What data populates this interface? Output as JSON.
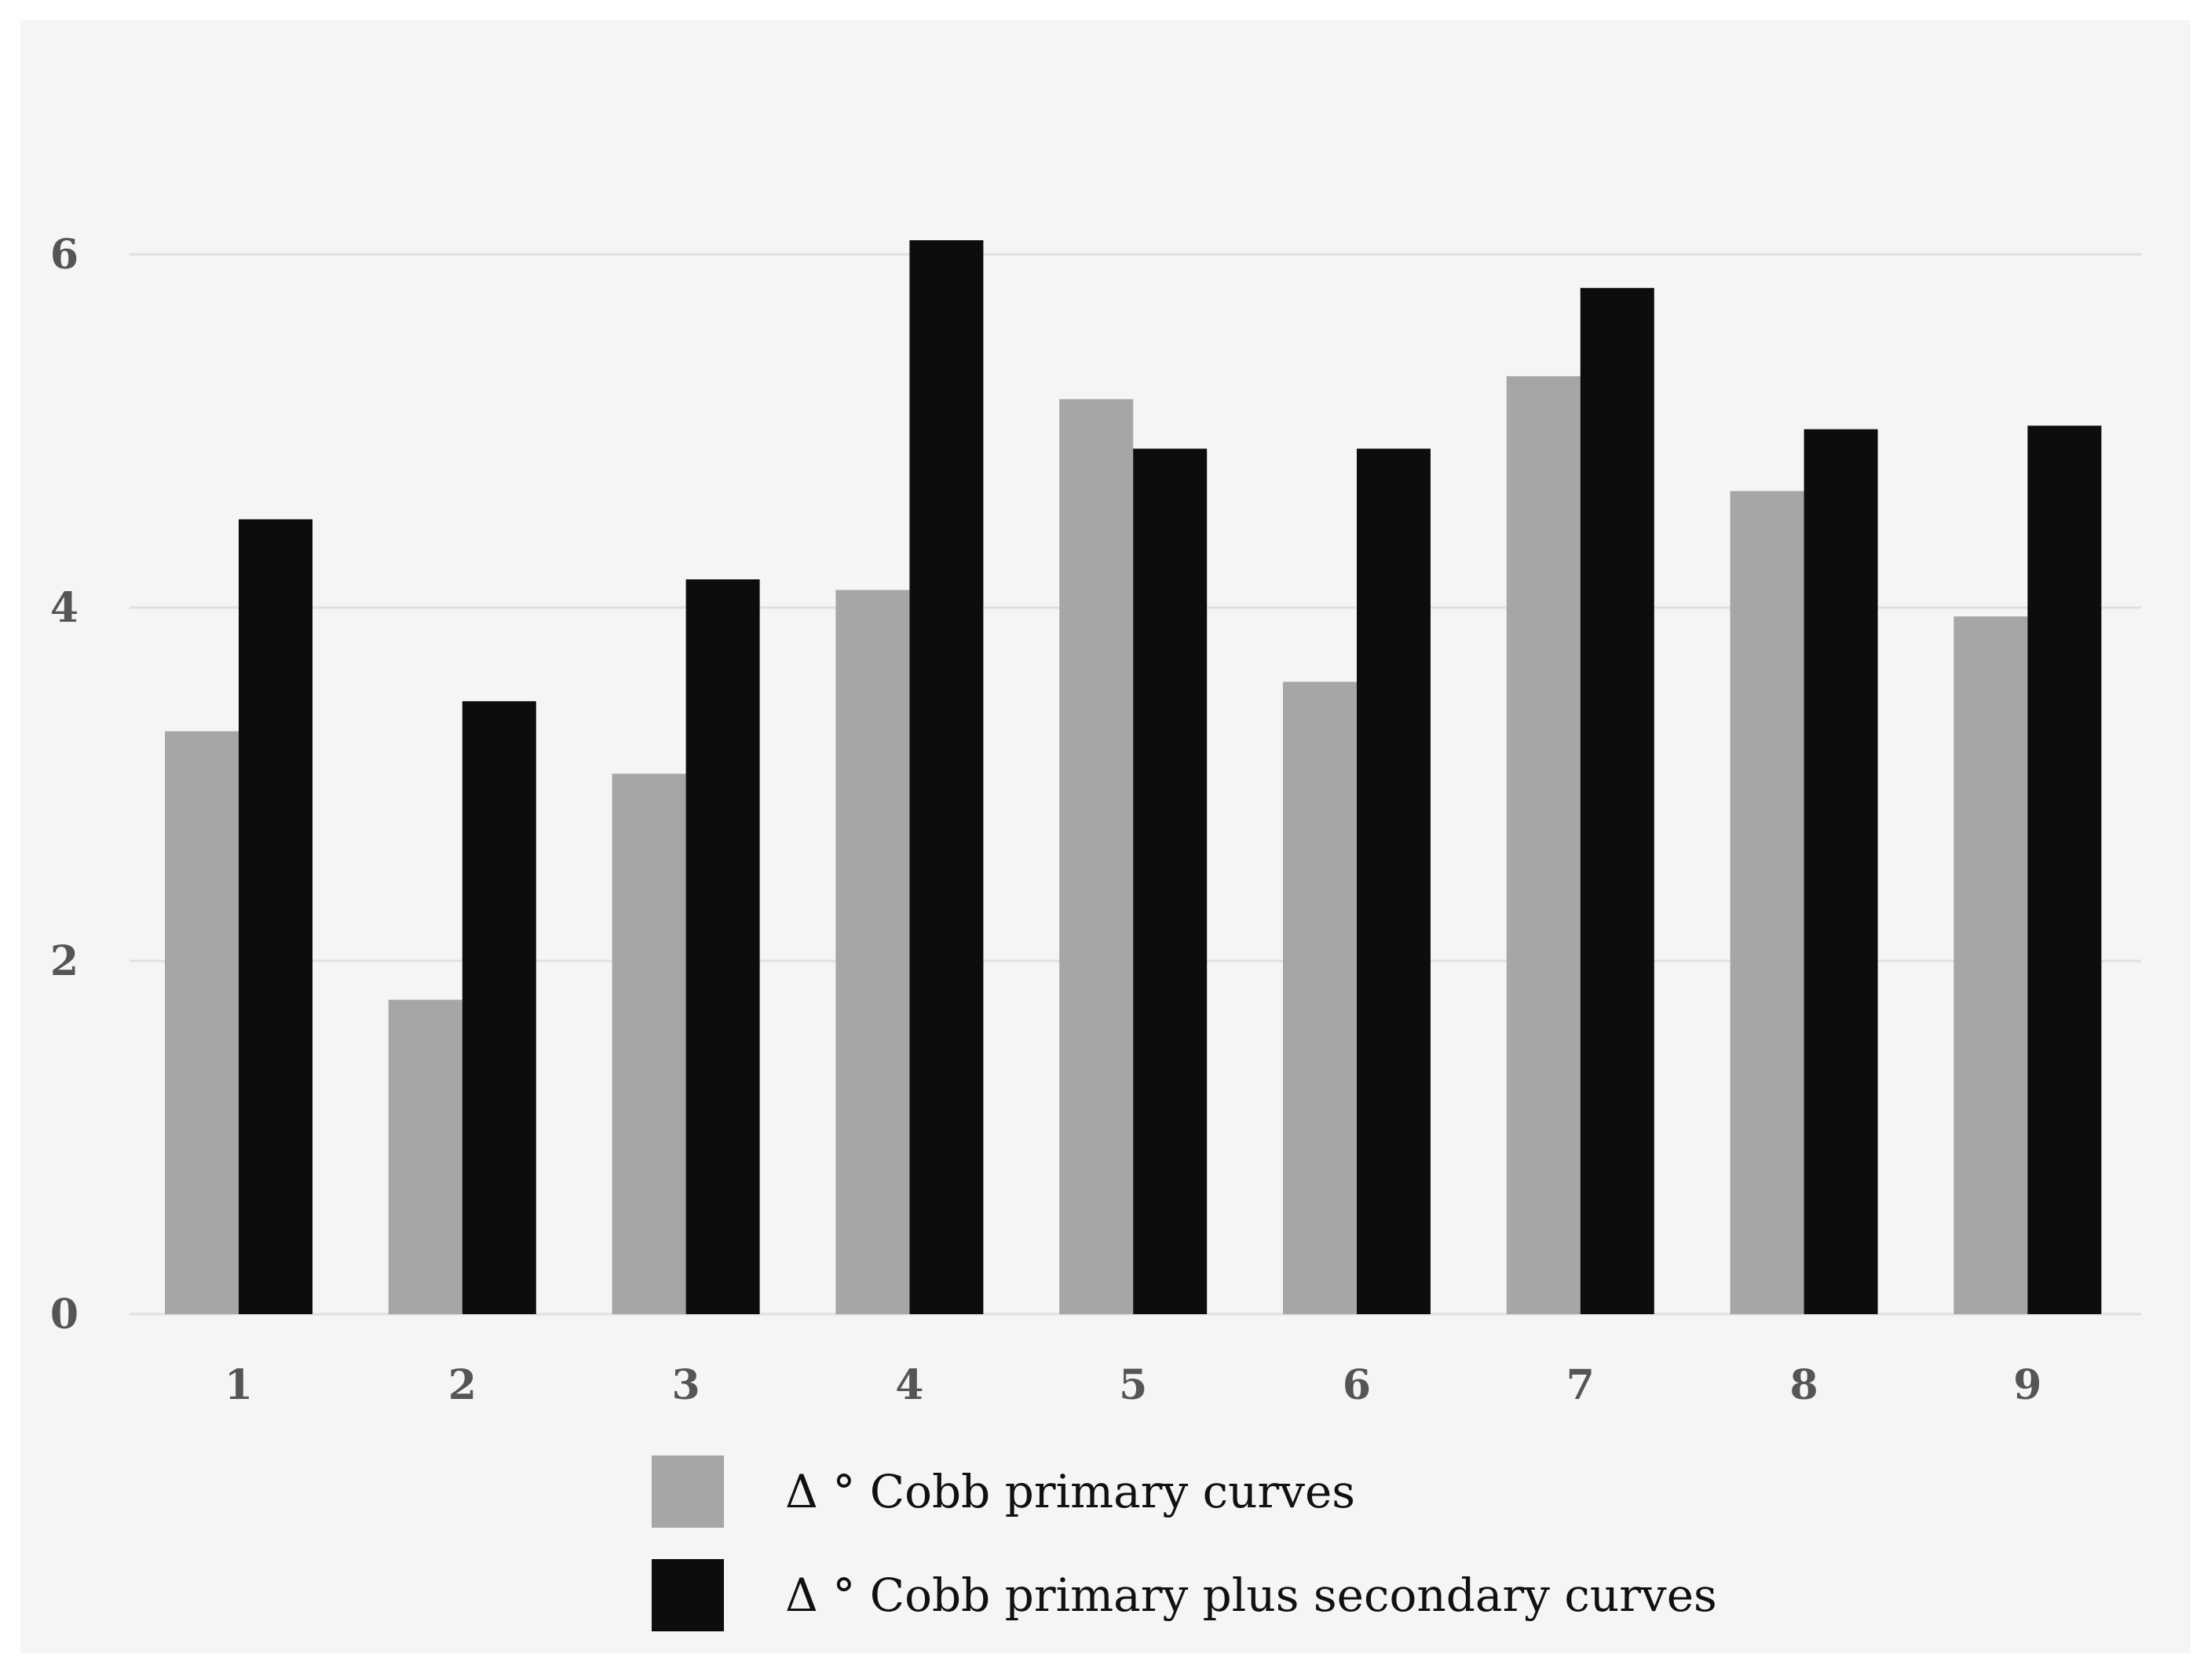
{
  "chart_data": {
    "type": "bar",
    "title": "",
    "xlabel": "",
    "ylabel": "",
    "categories": [
      "1",
      "2",
      "3",
      "4",
      "5",
      "6",
      "7",
      "8",
      "9"
    ],
    "ylim": [
      0,
      6.6
    ],
    "yticks": [
      "0",
      "2",
      "4",
      "6"
    ],
    "grid": true,
    "legend_position": "bottom",
    "series": [
      {
        "name": "Δ ° Cobb primary curves",
        "color": "#a6a6a6",
        "values": [
          3.3,
          1.78,
          3.06,
          4.1,
          5.18,
          3.58,
          5.31,
          4.66,
          3.95
        ]
      },
      {
        "name": "Δ ° Cobb primary plus secondary curves",
        "color": "#0d0d0d",
        "values": [
          4.5,
          3.47,
          4.16,
          6.08,
          4.9,
          4.9,
          5.81,
          5.01,
          5.03
        ]
      }
    ]
  },
  "colors": {
    "plot_background": "#f5f5f5",
    "gridline": "#e0e0e0",
    "page_background": "#ffffff"
  }
}
